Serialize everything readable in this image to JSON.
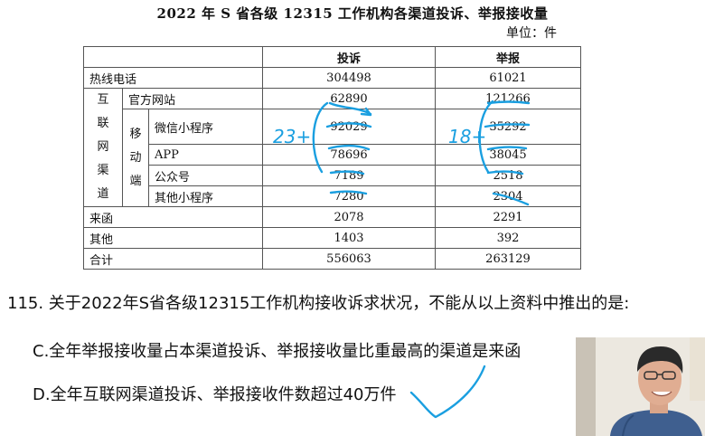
{
  "title": "2022 年 S 省各级 12315 工作机构各渠道投诉、举报接收量",
  "unit": "单位：件",
  "table": {
    "headers": [
      "投诉",
      "举报"
    ],
    "group_internet": [
      "互",
      "联",
      "网",
      "渠",
      "道"
    ],
    "group_mobile": [
      "移",
      "动",
      "端"
    ],
    "rows": {
      "hotline": {
        "label": "热线电话",
        "complaint": "304498",
        "report": "61021"
      },
      "website": {
        "label": "官方网站",
        "complaint": "62890",
        "report": "121266"
      },
      "wechat": {
        "label": "微信小程序",
        "complaint": "92029",
        "report": "35292"
      },
      "app": {
        "label": "APP",
        "complaint": "78696",
        "report": "38045"
      },
      "public": {
        "label": "公众号",
        "complaint": "7189",
        "report": "2518"
      },
      "other_mini": {
        "label": "其他小程序",
        "complaint": "7280",
        "report": "2304"
      },
      "letter": {
        "label": "来函",
        "complaint": "2078",
        "report": "2291"
      },
      "others": {
        "label": "其他",
        "complaint": "1403",
        "report": "392"
      },
      "total": {
        "label": "合计",
        "complaint": "556063",
        "report": "263129"
      }
    }
  },
  "handwriting": {
    "left_note": "23+",
    "right_note": "18+"
  },
  "question": {
    "stem": "115. 关于2022年S省各级12315工作机构接收诉求状况，不能从以上资料中推出的是:",
    "option_c": "C.全年举报接收量占本渠道投诉、举报接收量比重最高的渠道是来函",
    "option_d": "D.全年互联网渠道投诉、举报接收件数超过40万件"
  }
}
